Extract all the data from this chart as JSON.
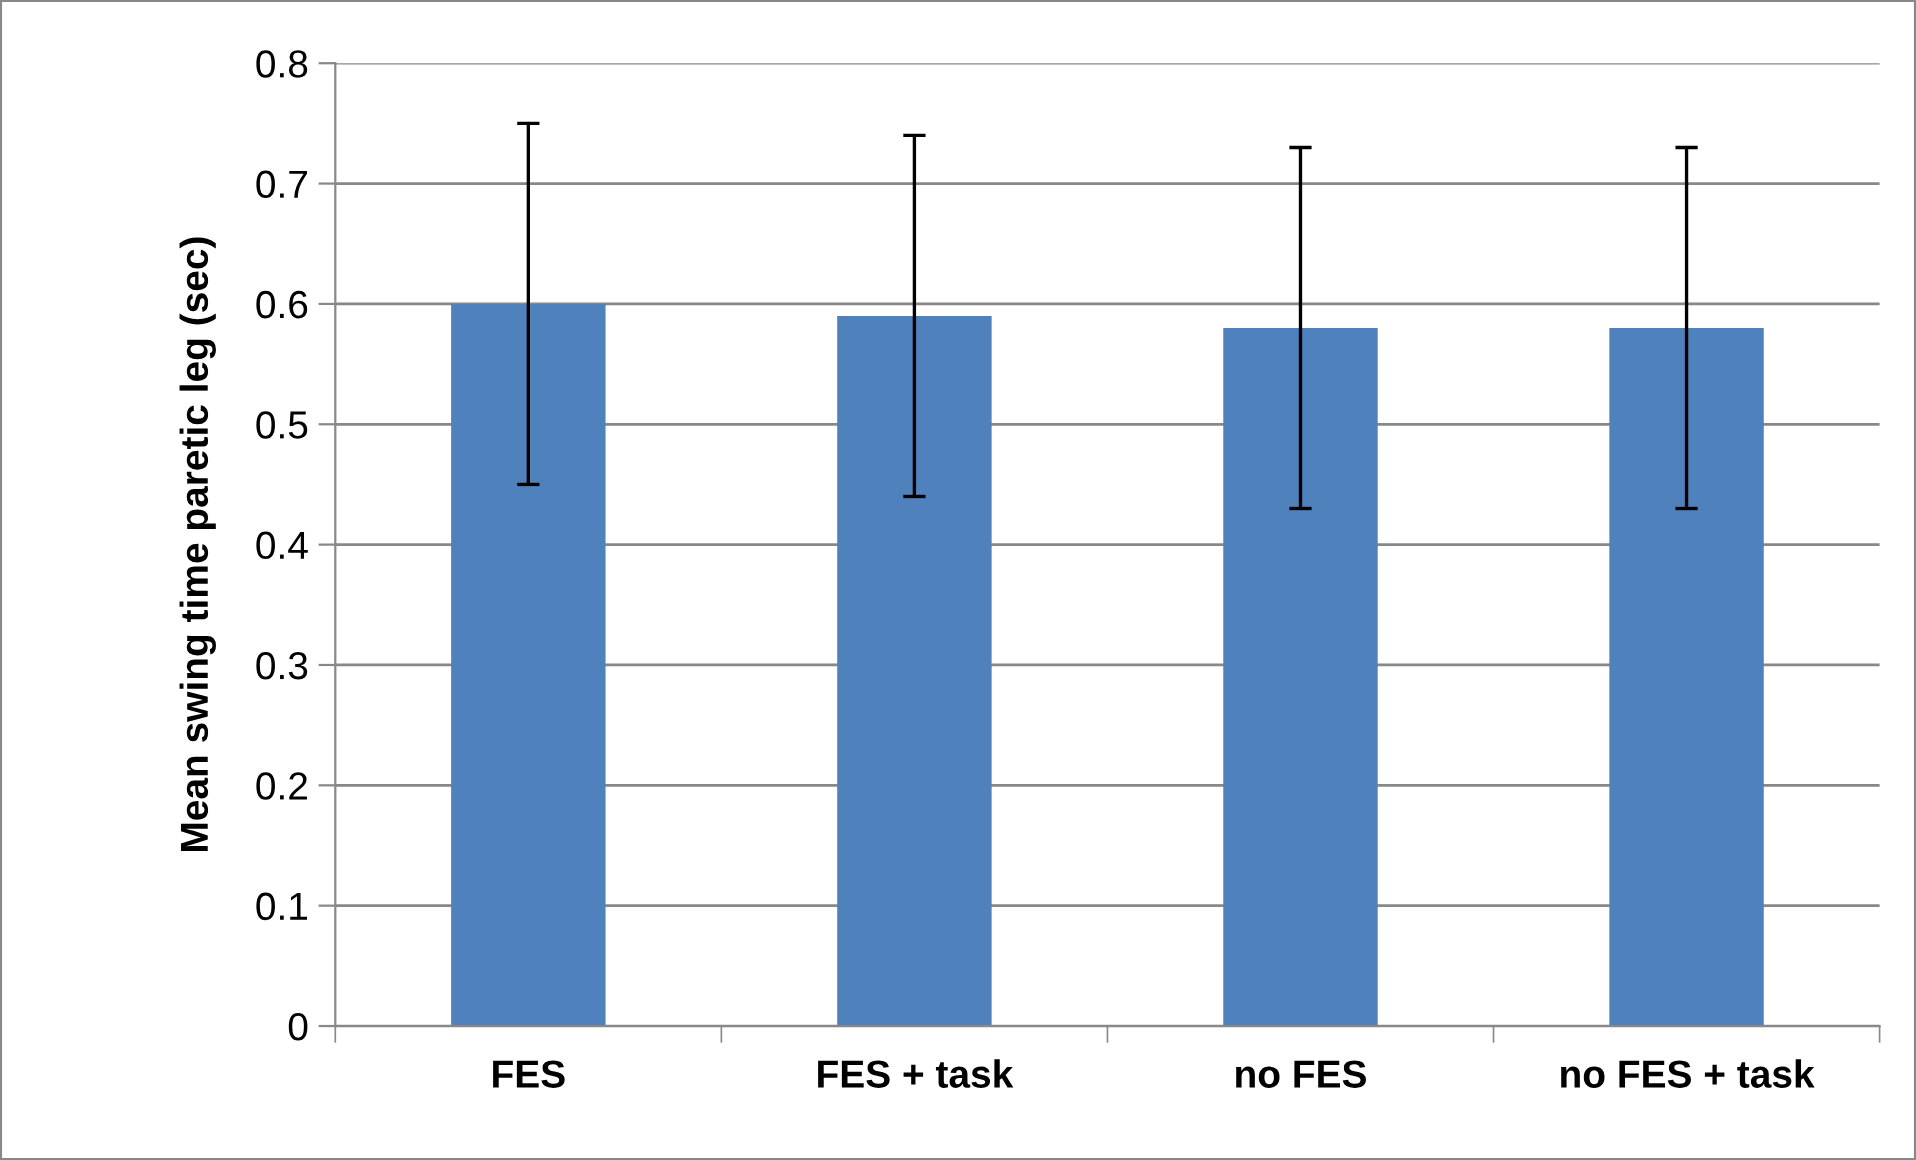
{
  "chart_data": {
    "type": "bar",
    "ylabel": "Mean swing time paretic leg (sec)",
    "categories": [
      "FES",
      "FES + task",
      "no FES",
      "no FES + task"
    ],
    "values": [
      0.6,
      0.59,
      0.58,
      0.58
    ],
    "errors": [
      0.15,
      0.15,
      0.15,
      0.15
    ],
    "color": "#4f81bd",
    "ylim": [
      0,
      0.8
    ],
    "yticks": [
      0,
      0.1,
      0.2,
      0.3,
      0.4,
      0.5,
      0.6,
      0.7,
      0.8
    ],
    "grid": "y"
  }
}
